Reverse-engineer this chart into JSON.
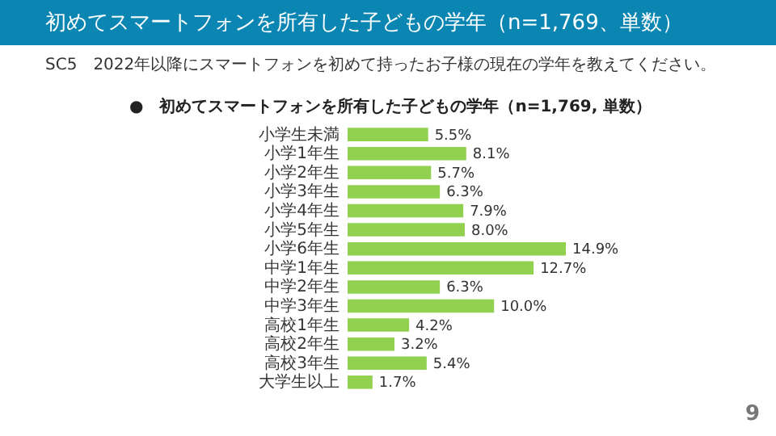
{
  "chart_data": {
    "type": "bar",
    "orientation": "horizontal",
    "title": "初めてスマートフォンを所有した子どもの学年（n=1,769、単数）",
    "subtitle": "SC5　2022年以降にスマートフォンを初めて持ったお子様の現在の学年を教えてください。",
    "annotations": [
      "●　初めてスマートフォンを所有した子どもの学年（n=1,769, 単数）",
      "9"
    ],
    "categories": [
      "小学生未満",
      "小学1年生",
      "小学2年生",
      "小学3年生",
      "小学4年生",
      "小学5年生",
      "小学6年生",
      "中学1年生",
      "中学2年生",
      "中学3年生",
      "高校1年生",
      "高校2年生",
      "高校3年生",
      "大学生以上"
    ],
    "values": [
      5.5,
      8.1,
      5.7,
      6.3,
      7.9,
      8.0,
      14.9,
      12.7,
      6.3,
      10.0,
      4.2,
      3.2,
      5.4,
      1.7
    ],
    "value_labels": [
      "5.5%",
      "8.1%",
      "5.7%",
      "6.3%",
      "7.9%",
      "8.0%",
      "14.9%",
      "12.7%",
      "6.3%",
      "10.0%",
      "4.2%",
      "3.2%",
      "5.4%",
      "1.7%"
    ],
    "color": "#92d050"
  }
}
